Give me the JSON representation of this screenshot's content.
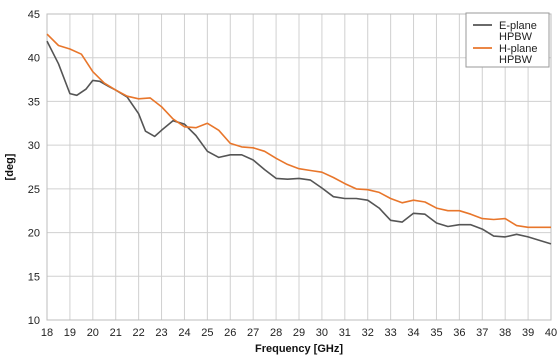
{
  "chart_data": {
    "type": "line",
    "xlabel": "Frequency [GHz]",
    "ylabel": "[deg]",
    "xlim": [
      18,
      40
    ],
    "ylim": [
      10,
      45
    ],
    "xticks": [
      18,
      19,
      20,
      21,
      22,
      23,
      24,
      25,
      26,
      27,
      28,
      29,
      30,
      31,
      32,
      33,
      34,
      35,
      36,
      37,
      38,
      39,
      40
    ],
    "yticks": [
      10,
      15,
      20,
      25,
      30,
      35,
      40,
      45
    ],
    "grid": true,
    "legend_position": "top-right",
    "series": [
      {
        "name_lines": [
          "E-plane",
          "HPBW"
        ],
        "color": "#555555",
        "x": [
          18,
          18.5,
          19,
          19.3,
          19.7,
          20,
          20.3,
          20.7,
          21,
          21.5,
          22,
          22.3,
          22.7,
          23,
          23.5,
          24,
          24.5,
          25,
          25.5,
          26,
          26.5,
          27,
          27.5,
          28,
          28.5,
          29,
          29.5,
          30,
          30.5,
          31,
          31.5,
          32,
          32.5,
          33,
          33.5,
          34,
          34.5,
          35,
          35.5,
          36,
          36.5,
          37,
          37.5,
          38,
          38.5,
          39,
          39.5,
          40
        ],
        "y": [
          41.9,
          39.3,
          35.9,
          35.7,
          36.4,
          37.4,
          37.3,
          36.7,
          36.3,
          35.5,
          33.6,
          31.6,
          31.0,
          31.7,
          32.8,
          32.4,
          31.1,
          29.3,
          28.6,
          28.9,
          28.9,
          28.3,
          27.2,
          26.2,
          26.1,
          26.2,
          26.0,
          25.1,
          24.1,
          23.9,
          23.9,
          23.7,
          22.8,
          21.4,
          21.2,
          22.2,
          22.1,
          21.1,
          20.7,
          20.9,
          20.9,
          20.4,
          19.6,
          19.5,
          19.8,
          19.5,
          19.1,
          18.7
        ]
      },
      {
        "name_lines": [
          "H-plane",
          "HPBW"
        ],
        "color": "#e8762b",
        "x": [
          18,
          18.5,
          19,
          19.5,
          20,
          20.5,
          21,
          21.5,
          22,
          22.5,
          23,
          23.5,
          24,
          24.5,
          25,
          25.5,
          26,
          26.5,
          27,
          27.5,
          28,
          28.5,
          29,
          29.5,
          30,
          30.5,
          31,
          31.5,
          32,
          32.5,
          33,
          33.5,
          34,
          34.5,
          35,
          35.5,
          36,
          36.5,
          37,
          37.5,
          38,
          38.5,
          39,
          39.5,
          40
        ],
        "y": [
          42.7,
          41.4,
          41.0,
          40.4,
          38.4,
          37.1,
          36.3,
          35.6,
          35.3,
          35.4,
          34.4,
          33.0,
          32.1,
          32.0,
          32.5,
          31.7,
          30.2,
          29.8,
          29.7,
          29.3,
          28.5,
          27.8,
          27.3,
          27.1,
          26.9,
          26.3,
          25.6,
          25.0,
          24.9,
          24.6,
          23.9,
          23.4,
          23.7,
          23.5,
          22.8,
          22.5,
          22.5,
          22.1,
          21.6,
          21.5,
          21.6,
          20.8,
          20.6,
          20.6,
          20.6
        ]
      }
    ]
  }
}
